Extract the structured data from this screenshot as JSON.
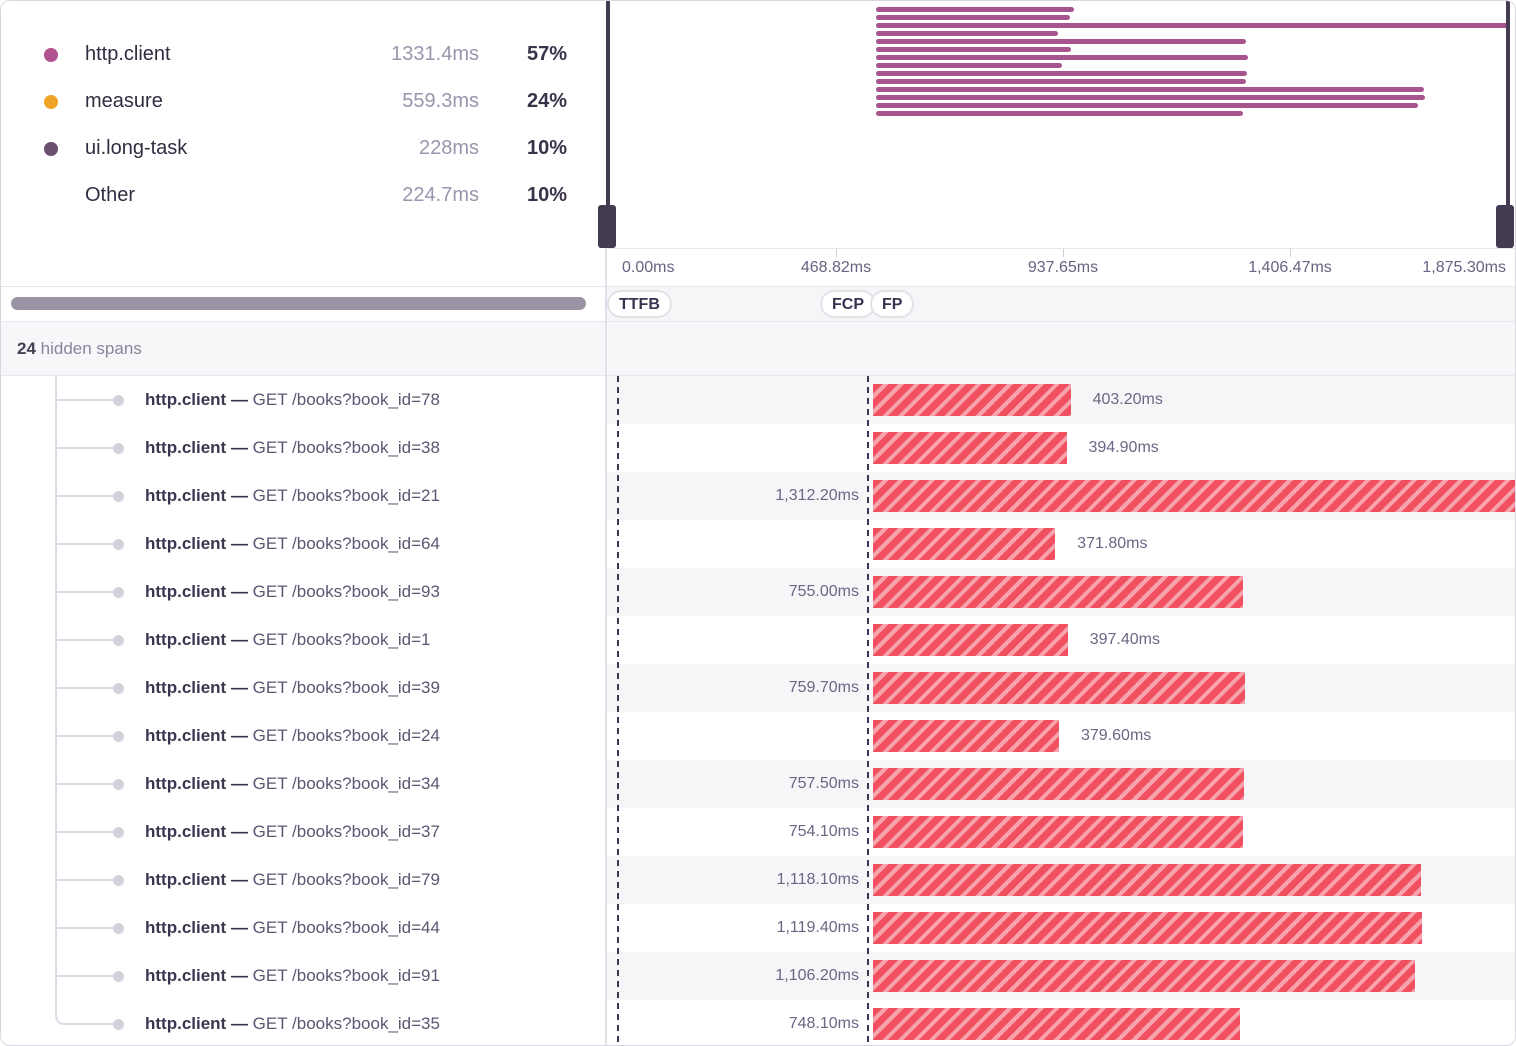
{
  "legend": {
    "items": [
      {
        "name": "http.client",
        "duration": "1331.4ms",
        "percent": "57%",
        "dot_color": "#b15390",
        "dot_style": "solid"
      },
      {
        "name": "measure",
        "duration": "559.3ms",
        "percent": "24%",
        "dot_color": "#f0a427",
        "dot_style": "solid"
      },
      {
        "name": "ui.long-task",
        "duration": "228ms",
        "percent": "10%",
        "dot_color": "#6b4f70",
        "dot_style": "hatched"
      },
      {
        "name": "Other",
        "duration": "224.7ms",
        "percent": "10%",
        "dot_color": "",
        "dot_style": "none"
      }
    ]
  },
  "minimap": {
    "bar_color": "#a7548c",
    "axis_labels": [
      "0.00ms",
      "468.82ms",
      "937.65ms",
      "1,406.47ms",
      "1,875.30ms"
    ],
    "total_ms": 1875.3
  },
  "markers": [
    {
      "label": "TTFB"
    },
    {
      "label": "FCP"
    },
    {
      "label": "FP"
    }
  ],
  "hidden_spans": {
    "count": "24",
    "text": "hidden spans"
  },
  "span_tree": {
    "separator": "—",
    "spans": [
      {
        "op": "http.client",
        "description": "GET /books?book_id=78",
        "duration_ms": 403.2,
        "duration_label": "403.20ms",
        "label_side": "right"
      },
      {
        "op": "http.client",
        "description": "GET /books?book_id=38",
        "duration_ms": 394.9,
        "duration_label": "394.90ms",
        "label_side": "right"
      },
      {
        "op": "http.client",
        "description": "GET /books?book_id=21",
        "duration_ms": 1312.2,
        "duration_label": "1,312.20ms",
        "label_side": "left"
      },
      {
        "op": "http.client",
        "description": "GET /books?book_id=64",
        "duration_ms": 371.8,
        "duration_label": "371.80ms",
        "label_side": "right"
      },
      {
        "op": "http.client",
        "description": "GET /books?book_id=93",
        "duration_ms": 755.0,
        "duration_label": "755.00ms",
        "label_side": "left"
      },
      {
        "op": "http.client",
        "description": "GET /books?book_id=1",
        "duration_ms": 397.4,
        "duration_label": "397.40ms",
        "label_side": "right"
      },
      {
        "op": "http.client",
        "description": "GET /books?book_id=39",
        "duration_ms": 759.7,
        "duration_label": "759.70ms",
        "label_side": "left"
      },
      {
        "op": "http.client",
        "description": "GET /books?book_id=24",
        "duration_ms": 379.6,
        "duration_label": "379.60ms",
        "label_side": "right"
      },
      {
        "op": "http.client",
        "description": "GET /books?book_id=34",
        "duration_ms": 757.5,
        "duration_label": "757.50ms",
        "label_side": "left"
      },
      {
        "op": "http.client",
        "description": "GET /books?book_id=37",
        "duration_ms": 754.1,
        "duration_label": "754.10ms",
        "label_side": "left"
      },
      {
        "op": "http.client",
        "description": "GET /books?book_id=79",
        "duration_ms": 1118.1,
        "duration_label": "1,118.10ms",
        "label_side": "left"
      },
      {
        "op": "http.client",
        "description": "GET /books?book_id=44",
        "duration_ms": 1119.4,
        "duration_label": "1,119.40ms",
        "label_side": "left"
      },
      {
        "op": "http.client",
        "description": "GET /books?book_id=91",
        "duration_ms": 1106.2,
        "duration_label": "1,106.20ms",
        "label_side": "left"
      },
      {
        "op": "http.client",
        "description": "GET /books?book_id=35",
        "duration_ms": 748.1,
        "duration_label": "748.10ms",
        "label_side": "left"
      }
    ]
  }
}
